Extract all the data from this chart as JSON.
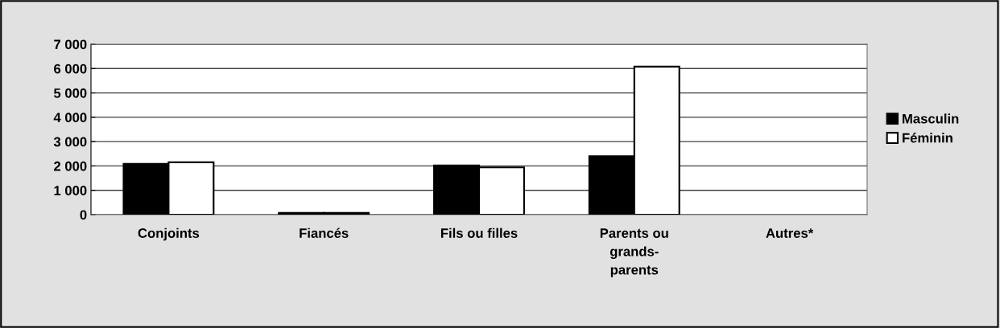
{
  "chart_data": {
    "type": "bar",
    "categories": [
      "Conjoints",
      "Fiancés",
      "Fils ou filles",
      "Parents ou\ngrands-\nparents",
      "Autres*"
    ],
    "series": [
      {
        "name": "Masculin",
        "color": "#000000",
        "values": [
          2090,
          70,
          2020,
          2400,
          null
        ]
      },
      {
        "name": "Féminin",
        "color": "#ffffff",
        "values": [
          2150,
          70,
          1940,
          6080,
          null
        ]
      }
    ],
    "ylim": [
      0,
      7000
    ],
    "yticks": [
      {
        "value": 0,
        "label": "0"
      },
      {
        "value": 1000,
        "label": "1 000"
      },
      {
        "value": 2000,
        "label": "2 000"
      },
      {
        "value": 3000,
        "label": "3 000"
      },
      {
        "value": 4000,
        "label": "4 000"
      },
      {
        "value": 5000,
        "label": "5 000"
      },
      {
        "value": 6000,
        "label": "6 000"
      },
      {
        "value": 7000,
        "label": "7 000"
      }
    ],
    "grid": "y",
    "legend": "right"
  }
}
